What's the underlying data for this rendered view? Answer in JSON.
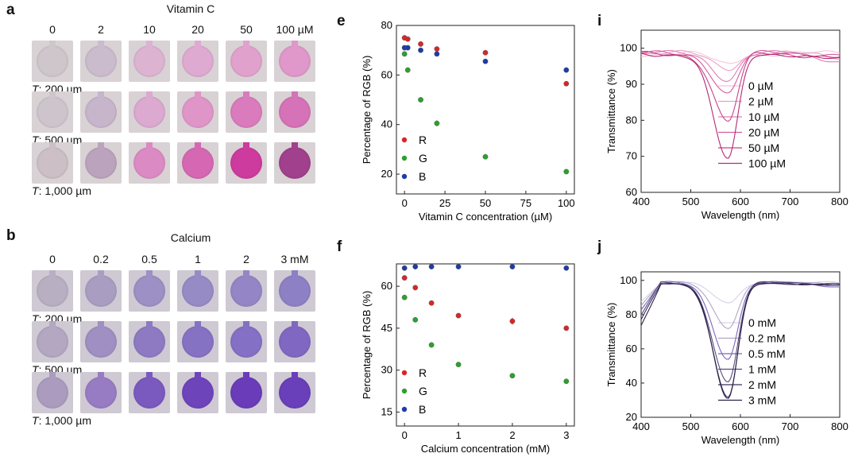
{
  "panel_a": {
    "letter": "a",
    "title": "Vitamin C",
    "concentrations": [
      "0",
      "2",
      "10",
      "20",
      "50",
      "100 µM"
    ],
    "row_labels": [
      {
        "italic": "T",
        "rest": ": 200 µm"
      },
      {
        "italic": "T",
        "rest": ": 500 µm"
      },
      {
        "italic": "T",
        "rest": ": 1,000 µm"
      }
    ],
    "colors": [
      [
        "#cfc6cb",
        "#cbbccd",
        "#dcb4d2",
        "#dfaad1",
        "#e0a2cd",
        "#df98c9"
      ],
      [
        "#cec5cc",
        "#c7b5cc",
        "#dca9d0",
        "#df95c8",
        "#da7bbd",
        "#d672b7"
      ],
      [
        "#ccbfc6",
        "#bba3bd",
        "#dc8ac3",
        "#d668b3",
        "#cc3b9d",
        "#a1408c"
      ]
    ],
    "bg": "#d8d2d5"
  },
  "panel_b": {
    "letter": "b",
    "title": "Calcium",
    "concentrations": [
      "0",
      "0.2",
      "0.5",
      "1",
      "2",
      "3 mM"
    ],
    "row_labels": [
      {
        "italic": "T",
        "rest": ": 200 µm"
      },
      {
        "italic": "T",
        "rest": ": 500 µm"
      },
      {
        "italic": "T",
        "rest": ": 1,000 µm"
      }
    ],
    "colors": [
      [
        "#b9afc3",
        "#a99ec2",
        "#9c90c5",
        "#978bc6",
        "#9486c6",
        "#8e80c4"
      ],
      [
        "#b3a7c1",
        "#9f8fc2",
        "#8d7ac2",
        "#8672c3",
        "#8470c4",
        "#8068c2"
      ],
      [
        "#ab9cbf",
        "#977cc4",
        "#7b5abf",
        "#6e44bb",
        "#6a3cb9",
        "#6a3fba"
      ]
    ],
    "bg": "#cfc9d3"
  },
  "chart_data": [
    {
      "panel": "e",
      "type": "scatter",
      "xlabel": "Vitamin C concentration (µM)",
      "ylabel": "Percentage of RGB (%)",
      "xlim": [
        -5,
        105
      ],
      "ylim": [
        12,
        80
      ],
      "xticks": [
        0,
        25,
        50,
        75,
        100
      ],
      "yticks": [
        20,
        40,
        60,
        80
      ],
      "series": [
        {
          "name": "R",
          "color": "#d62728",
          "x": [
            0,
            2,
            10,
            20,
            50,
            100
          ],
          "y": [
            75,
            74.5,
            72.5,
            70.5,
            69,
            56.5
          ],
          "err": [
            0.5,
            0.5,
            0.5,
            0.5,
            0.5,
            1.0
          ]
        },
        {
          "name": "G",
          "color": "#2ca02c",
          "x": [
            0,
            2,
            10,
            20,
            50,
            100
          ],
          "y": [
            68.5,
            62,
            50,
            40.5,
            27,
            21
          ],
          "err": [
            0.5,
            0.5,
            0.5,
            1.2,
            0.5,
            0.5
          ]
        },
        {
          "name": "B",
          "color": "#1f3ba8",
          "x": [
            0,
            2,
            10,
            20,
            50,
            100
          ],
          "y": [
            71,
            71,
            70,
            68.5,
            65.5,
            62
          ],
          "err": [
            0.5,
            0.5,
            0.5,
            0.5,
            0.5,
            0.5
          ]
        }
      ],
      "legend": "bottom-left"
    },
    {
      "panel": "f",
      "type": "scatter",
      "xlabel": "Calcium concentration (mM)",
      "ylabel": "Percentage of RGB (%)",
      "xlim": [
        -0.15,
        3.15
      ],
      "ylim": [
        10,
        68
      ],
      "xticks": [
        0,
        1,
        2,
        3
      ],
      "yticks": [
        15,
        30,
        45,
        60
      ],
      "series": [
        {
          "name": "R",
          "color": "#d62728",
          "x": [
            0,
            0.2,
            0.5,
            1,
            2,
            3
          ],
          "y": [
            63,
            59.5,
            54,
            49.5,
            47.5,
            45
          ],
          "err": [
            0.5,
            0.5,
            0.5,
            0.5,
            1.2,
            0.5
          ]
        },
        {
          "name": "G",
          "color": "#2ca02c",
          "x": [
            0,
            0.2,
            0.5,
            1,
            2,
            3
          ],
          "y": [
            56,
            48,
            39,
            32,
            28,
            26
          ],
          "err": [
            0.5,
            0.5,
            0.5,
            0.5,
            0.5,
            0.5
          ]
        },
        {
          "name": "B",
          "color": "#1f3ba8",
          "x": [
            0,
            0.2,
            0.5,
            1,
            2,
            3
          ],
          "y": [
            66.5,
            67,
            67,
            67,
            67,
            66.5
          ],
          "err": [
            0.5,
            0.5,
            0.5,
            0.5,
            1.0,
            0.5
          ]
        }
      ],
      "legend": "bottom-left"
    },
    {
      "panel": "i",
      "type": "line",
      "xlabel": "Wavelength (nm)",
      "ylabel": "Transmittance (%)",
      "xlim": [
        400,
        800
      ],
      "ylim": [
        60,
        105
      ],
      "xticks": [
        400,
        500,
        600,
        700,
        800
      ],
      "yticks": [
        60,
        70,
        80,
        90,
        100
      ],
      "dip_center": 575,
      "series": [
        {
          "name": "0 µM",
          "color": "#f3c5dc",
          "min": 97
        },
        {
          "name": "2 µM",
          "color": "#ec9fc6",
          "min": 96
        },
        {
          "name": "10 µM",
          "color": "#e27fb3",
          "min": 93
        },
        {
          "name": "20 µM",
          "color": "#d65c9f",
          "min": 89
        },
        {
          "name": "50 µM",
          "color": "#c8438a",
          "min": 81
        },
        {
          "name": "100 µM",
          "color": "#b52a73",
          "min": 70.5
        }
      ],
      "legend": "right"
    },
    {
      "panel": "j",
      "type": "line",
      "xlabel": "Wavelength (nm)",
      "ylabel": "Transmittance (%)",
      "xlim": [
        400,
        800
      ],
      "ylim": [
        20,
        105
      ],
      "xticks": [
        400,
        500,
        600,
        700,
        800
      ],
      "yticks": [
        20,
        40,
        60,
        80,
        100
      ],
      "dip_center": 575,
      "series": [
        {
          "name": "0 mM",
          "color": "#d9d2e6",
          "min": 88
        },
        {
          "name": "0.2 mM",
          "color": "#b1a6c6",
          "min": 74
        },
        {
          "name": "0.5 mM",
          "color": "#7a68b8",
          "min": 56
        },
        {
          "name": "1 mM",
          "color": "#5a4a7e",
          "min": 42
        },
        {
          "name": "2 mM",
          "color": "#3a2f5c",
          "min": 33
        },
        {
          "name": "3 mM",
          "color": "#2a2348",
          "min": 32
        }
      ],
      "legend": "right"
    }
  ]
}
